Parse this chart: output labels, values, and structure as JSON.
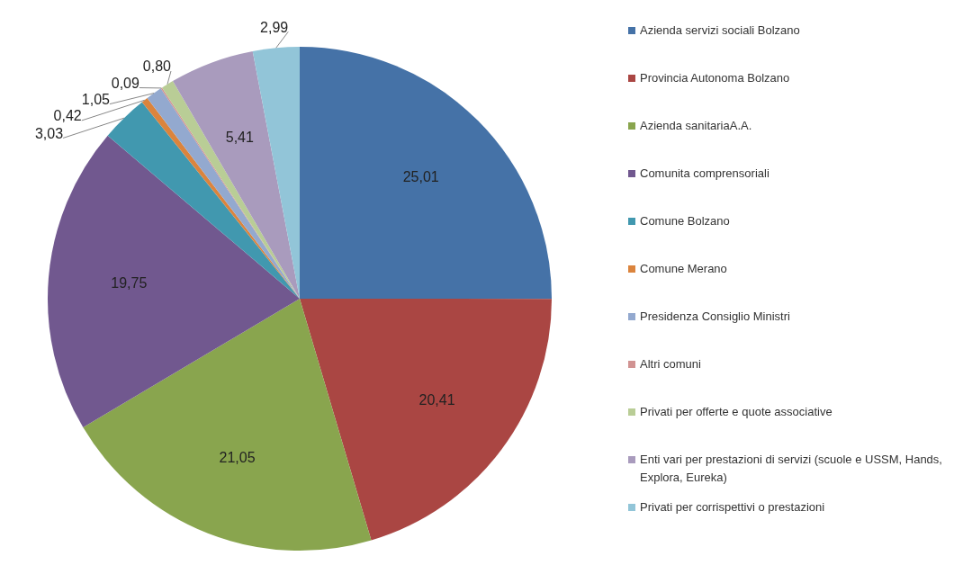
{
  "chart_data": {
    "type": "pie",
    "categories": [
      "Azienda servizi sociali Bolzano",
      "Provincia Autonoma Bolzano",
      "Azienda sanitariaA.A.",
      "Comunita comprensoriali",
      "Comune Bolzano",
      "Comune Merano",
      "Presidenza Consiglio Ministri",
      "Altri comuni",
      "Privati per offerte e quote associative",
      "Enti vari per prestazioni di servizi (scuole e USSM, Hands, Explora, Eureka)",
      "Privati per corrispettivi o prestazioni"
    ],
    "values": [
      25.01,
      20.41,
      21.05,
      19.75,
      3.03,
      0.42,
      1.05,
      0.09,
      0.8,
      5.41,
      2.99
    ],
    "value_labels": [
      "25,01",
      "20,41",
      "21,05",
      "19,75",
      "3,03",
      "0,42",
      "1,05",
      "0,09",
      "0,80",
      "5,41",
      "2,99"
    ],
    "colors": [
      "#4572a7",
      "#aa4643",
      "#89a54e",
      "#71588f",
      "#4198af",
      "#db843d",
      "#93a9cf",
      "#d19392",
      "#b9cd96",
      "#a99bbd",
      "#92c5d8"
    ],
    "legend": "right"
  }
}
